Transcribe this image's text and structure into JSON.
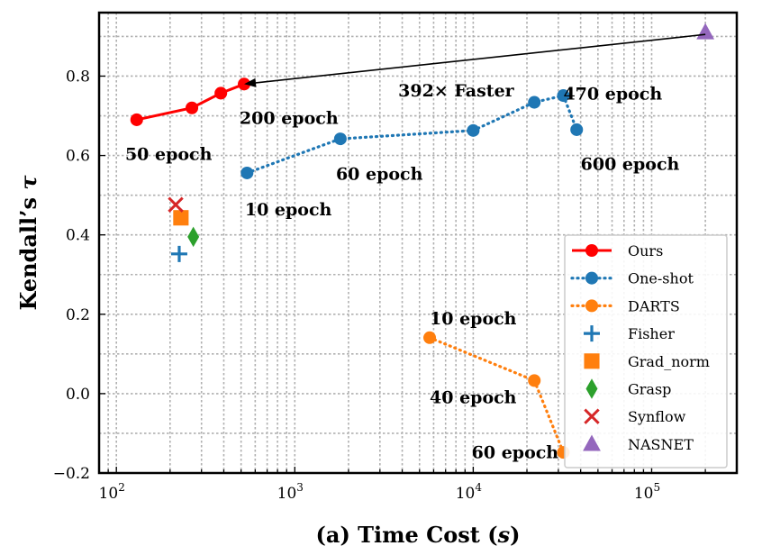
{
  "chart_data": {
    "type": "scatter",
    "xlabel": "(a) Time Cost (s)",
    "ylabel": "Kendall's τ",
    "xscale": "log",
    "xlim": [
      80,
      300000
    ],
    "ylim": [
      -0.2,
      0.96
    ],
    "x_ticks": [
      {
        "value": 100,
        "base": "10",
        "exp": "2"
      },
      {
        "value": 1000,
        "base": "10",
        "exp": "3"
      },
      {
        "value": 10000,
        "base": "10",
        "exp": "4"
      },
      {
        "value": 100000,
        "base": "10",
        "exp": "5"
      }
    ],
    "y_ticks": [
      {
        "value": -0.2,
        "label": "−0.2"
      },
      {
        "value": 0.0,
        "label": "0.0"
      },
      {
        "value": 0.2,
        "label": "0.2"
      },
      {
        "value": 0.4,
        "label": "0.4"
      },
      {
        "value": 0.6,
        "label": "0.6"
      },
      {
        "value": 0.8,
        "label": "0.8"
      }
    ],
    "grid": true,
    "legend_position": "lower-right",
    "series": [
      {
        "name": "Ours",
        "color": "#ff0000",
        "marker": "circle",
        "line": "solid",
        "points": [
          [
            130,
            0.69
          ],
          [
            265,
            0.72
          ],
          [
            385,
            0.757
          ],
          [
            520,
            0.78
          ]
        ]
      },
      {
        "name": "One-shot",
        "color": "#1f77b4",
        "marker": "circle",
        "line": "dotted",
        "points": [
          [
            540,
            0.556
          ],
          [
            1800,
            0.642
          ],
          [
            10000,
            0.663
          ],
          [
            22000,
            0.734
          ],
          [
            32000,
            0.751
          ],
          [
            38000,
            0.665
          ]
        ]
      },
      {
        "name": "DARTS",
        "color": "#ff7f0e",
        "marker": "circle",
        "line": "dotted",
        "points": [
          [
            5700,
            0.141
          ],
          [
            22000,
            0.033
          ],
          [
            32000,
            -0.148
          ]
        ]
      },
      {
        "name": "Fisher",
        "color": "#1f77b4",
        "marker": "plus",
        "line": "none",
        "points": [
          [
            225,
            0.352
          ]
        ]
      },
      {
        "name": "Grad_norm",
        "color": "#ff7f0e",
        "marker": "square",
        "line": "none",
        "points": [
          [
            230,
            0.443
          ]
        ]
      },
      {
        "name": "Grasp",
        "color": "#2ca02c",
        "marker": "diamond",
        "line": "none",
        "points": [
          [
            270,
            0.395
          ]
        ]
      },
      {
        "name": "Synflow",
        "color": "#d62728",
        "marker": "x",
        "line": "none",
        "points": [
          [
            215,
            0.476
          ]
        ]
      },
      {
        "name": "NASNET",
        "color": "#9467bd",
        "marker": "triangle",
        "line": "none",
        "points": [
          [
            200000,
            0.91
          ]
        ]
      }
    ],
    "annotations": [
      {
        "text": "50 epoch",
        "x": 112,
        "y": 0.605
      },
      {
        "text": "200 epoch",
        "x": 490,
        "y": 0.695
      },
      {
        "text": "10 epoch",
        "x": 525,
        "y": 0.465
      },
      {
        "text": "60 epoch",
        "x": 1700,
        "y": 0.555
      },
      {
        "text": "392× Faster",
        "x": 3800,
        "y": 0.765
      },
      {
        "text": "470 epoch",
        "x": 32000,
        "y": 0.757
      },
      {
        "text": "600 epoch",
        "x": 40000,
        "y": 0.58
      },
      {
        "text": "10 epoch",
        "x": 5700,
        "y": 0.19
      },
      {
        "text": "40 epoch",
        "x": 5700,
        "y": -0.008
      },
      {
        "text": "60 epoch",
        "x": 9800,
        "y": -0.147
      }
    ],
    "arrow": {
      "from": [
        200000,
        0.905
      ],
      "to": [
        520,
        0.78
      ]
    }
  }
}
